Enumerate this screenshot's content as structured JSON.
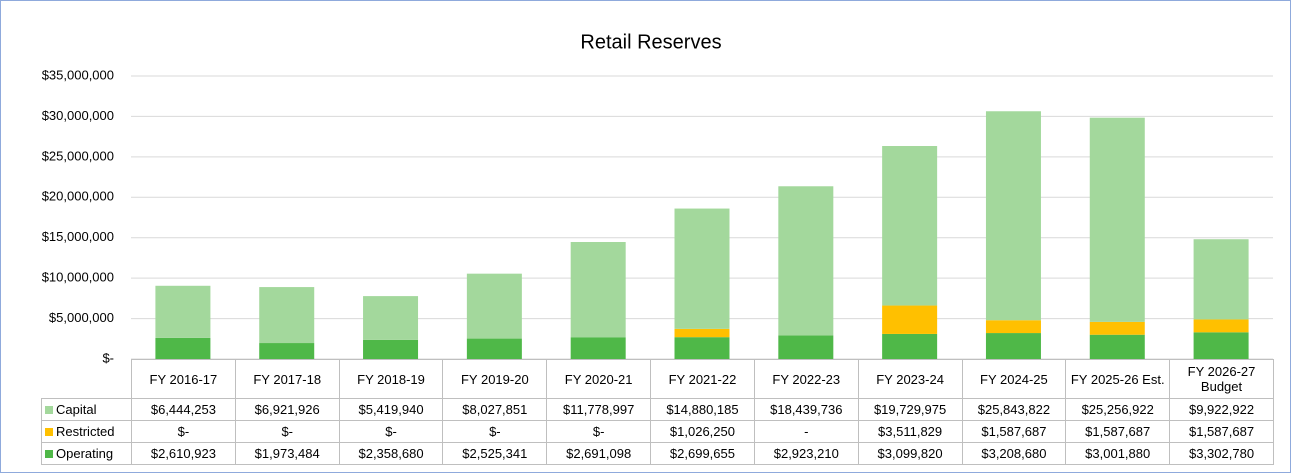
{
  "chart_data": {
    "type": "stacked_bar",
    "title": "Retail Reserves",
    "categories": [
      "FY 2016-17",
      "FY 2017-18",
      "FY 2018-19",
      "FY 2019-20",
      "FY 2020-21",
      "FY 2021-22",
      "FY 2022-23",
      "FY 2023-24",
      "FY 2024-25",
      "FY 2025-26 Est.",
      "FY 2026-27 Budget"
    ],
    "series": [
      {
        "name": "Capital",
        "color": "#a3d89c",
        "values": [
          6444253,
          6921926,
          5419940,
          8027851,
          11778997,
          14880185,
          18439736,
          19729975,
          25843822,
          25256922,
          9922922
        ],
        "value_labels": [
          "$6,444,253",
          "$6,921,926",
          "$5,419,940",
          "$8,027,851",
          "$11,778,997",
          "$14,880,185",
          "$18,439,736",
          "$19,729,975",
          "$25,843,822",
          "$25,256,922",
          "$9,922,922"
        ]
      },
      {
        "name": "Restricted",
        "color": "#ffc000",
        "values": [
          0,
          0,
          0,
          0,
          0,
          1026250,
          0,
          3511829,
          1587687,
          1587687,
          1587687
        ],
        "value_labels": [
          "$-",
          "$-",
          "$-",
          "$-",
          "$-",
          "$1,026,250",
          "-",
          "$3,511,829",
          "$1,587,687",
          "$1,587,687",
          "$1,587,687"
        ]
      },
      {
        "name": "Operating",
        "color": "#4fb848",
        "values": [
          2610923,
          1973484,
          2358680,
          2525341,
          2691098,
          2699655,
          2923210,
          3099820,
          3208680,
          3001880,
          3302780
        ],
        "value_labels": [
          "$2,610,923",
          "$1,973,484",
          "$2,358,680",
          "$2,525,341",
          "$2,691,098",
          "$2,699,655",
          "$2,923,210",
          "$3,099,820",
          "$3,208,680",
          "$3,001,880",
          "$3,302,780"
        ]
      }
    ],
    "ylim": [
      0,
      35000000
    ],
    "yticks": [
      {
        "value": 0,
        "label": "$-"
      },
      {
        "value": 5000000,
        "label": "$5,000,000"
      },
      {
        "value": 10000000,
        "label": "$10,000,000"
      },
      {
        "value": 15000000,
        "label": "$15,000,000"
      },
      {
        "value": 20000000,
        "label": "$20,000,000"
      },
      {
        "value": 25000000,
        "label": "$25,000,000"
      },
      {
        "value": 30000000,
        "label": "$30,000,000"
      },
      {
        "value": 35000000,
        "label": "$35,000,000"
      }
    ],
    "grid": true
  }
}
